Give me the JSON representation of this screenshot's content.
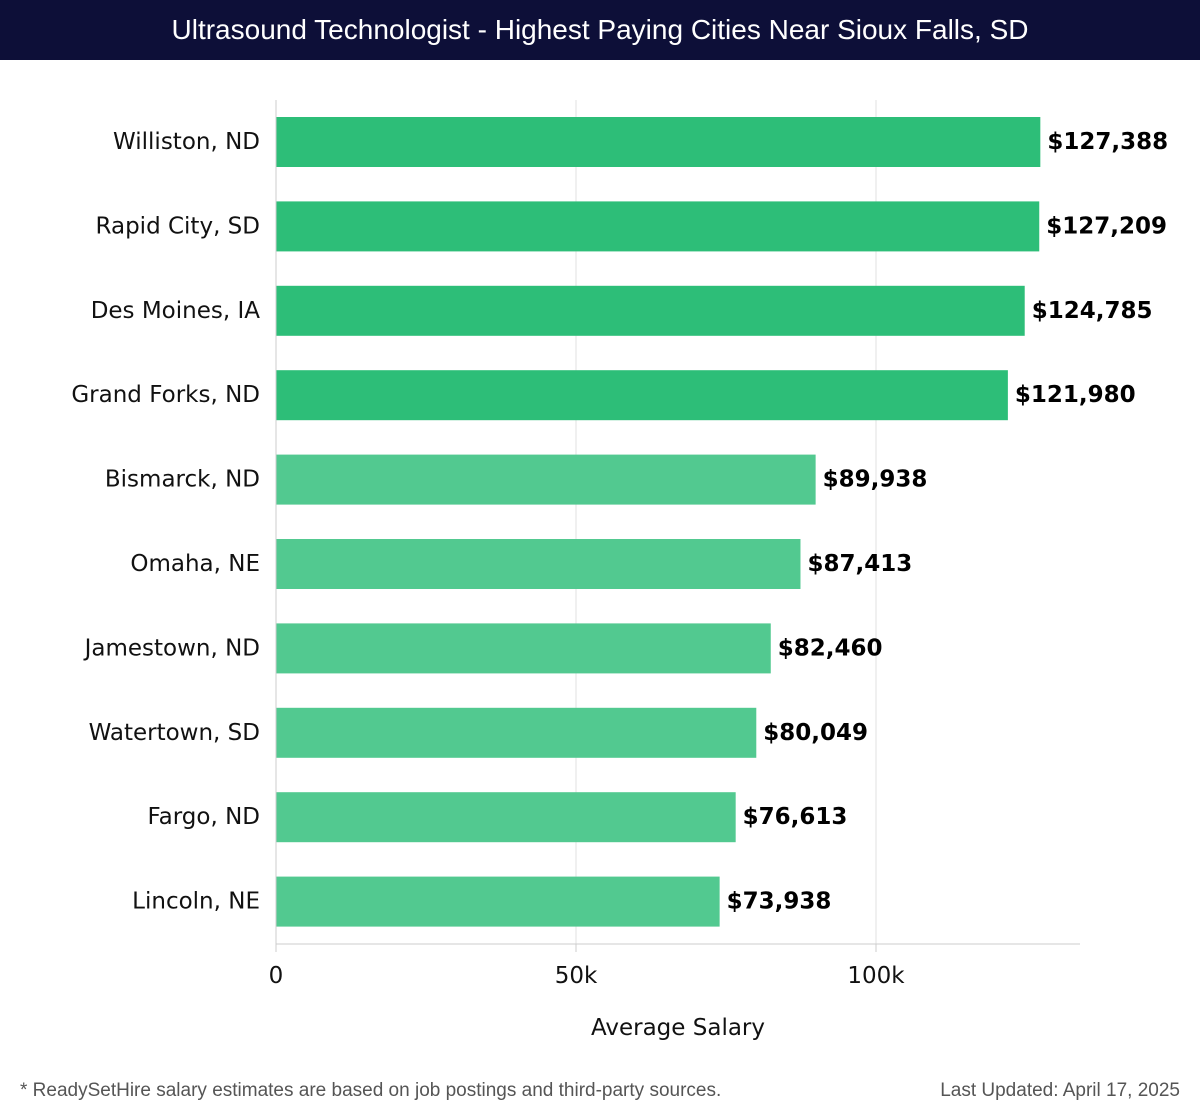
{
  "chart_data": {
    "type": "bar",
    "orientation": "horizontal",
    "title": "Ultrasound Technologist - Highest Paying Cities Near Sioux Falls, SD",
    "xlabel": "Average Salary",
    "ylabel": "",
    "xlim": [
      0,
      134000
    ],
    "xticks": [
      0,
      50000,
      100000
    ],
    "xtick_labels": [
      "0",
      "50k",
      "100k"
    ],
    "grid": true,
    "categories": [
      "Williston, ND",
      "Rapid City, SD",
      "Des Moines, IA",
      "Grand Forks, ND",
      "Bismarck, ND",
      "Omaha, NE",
      "Jamestown, ND",
      "Watertown, SD",
      "Fargo, ND",
      "Lincoln, NE"
    ],
    "values": [
      127388,
      127209,
      124785,
      121980,
      89938,
      87413,
      82460,
      80049,
      76613,
      73938
    ],
    "value_labels": [
      "$127,388",
      "$127,209",
      "$124,785",
      "$121,980",
      "$89,938",
      "$87,413",
      "$82,460",
      "$80,049",
      "$76,613",
      "$73,938"
    ],
    "colors": {
      "high": "#2dbe78",
      "low": "#52c990",
      "grid": "#e2e2e2",
      "axis": "#cccccc"
    }
  },
  "footer": {
    "note": "* ReadySetHire salary estimates are based on job postings and third-party sources.",
    "updated": "Last Updated: April 17, 2025"
  },
  "colors": {
    "header_bg": "#0d0f38"
  }
}
